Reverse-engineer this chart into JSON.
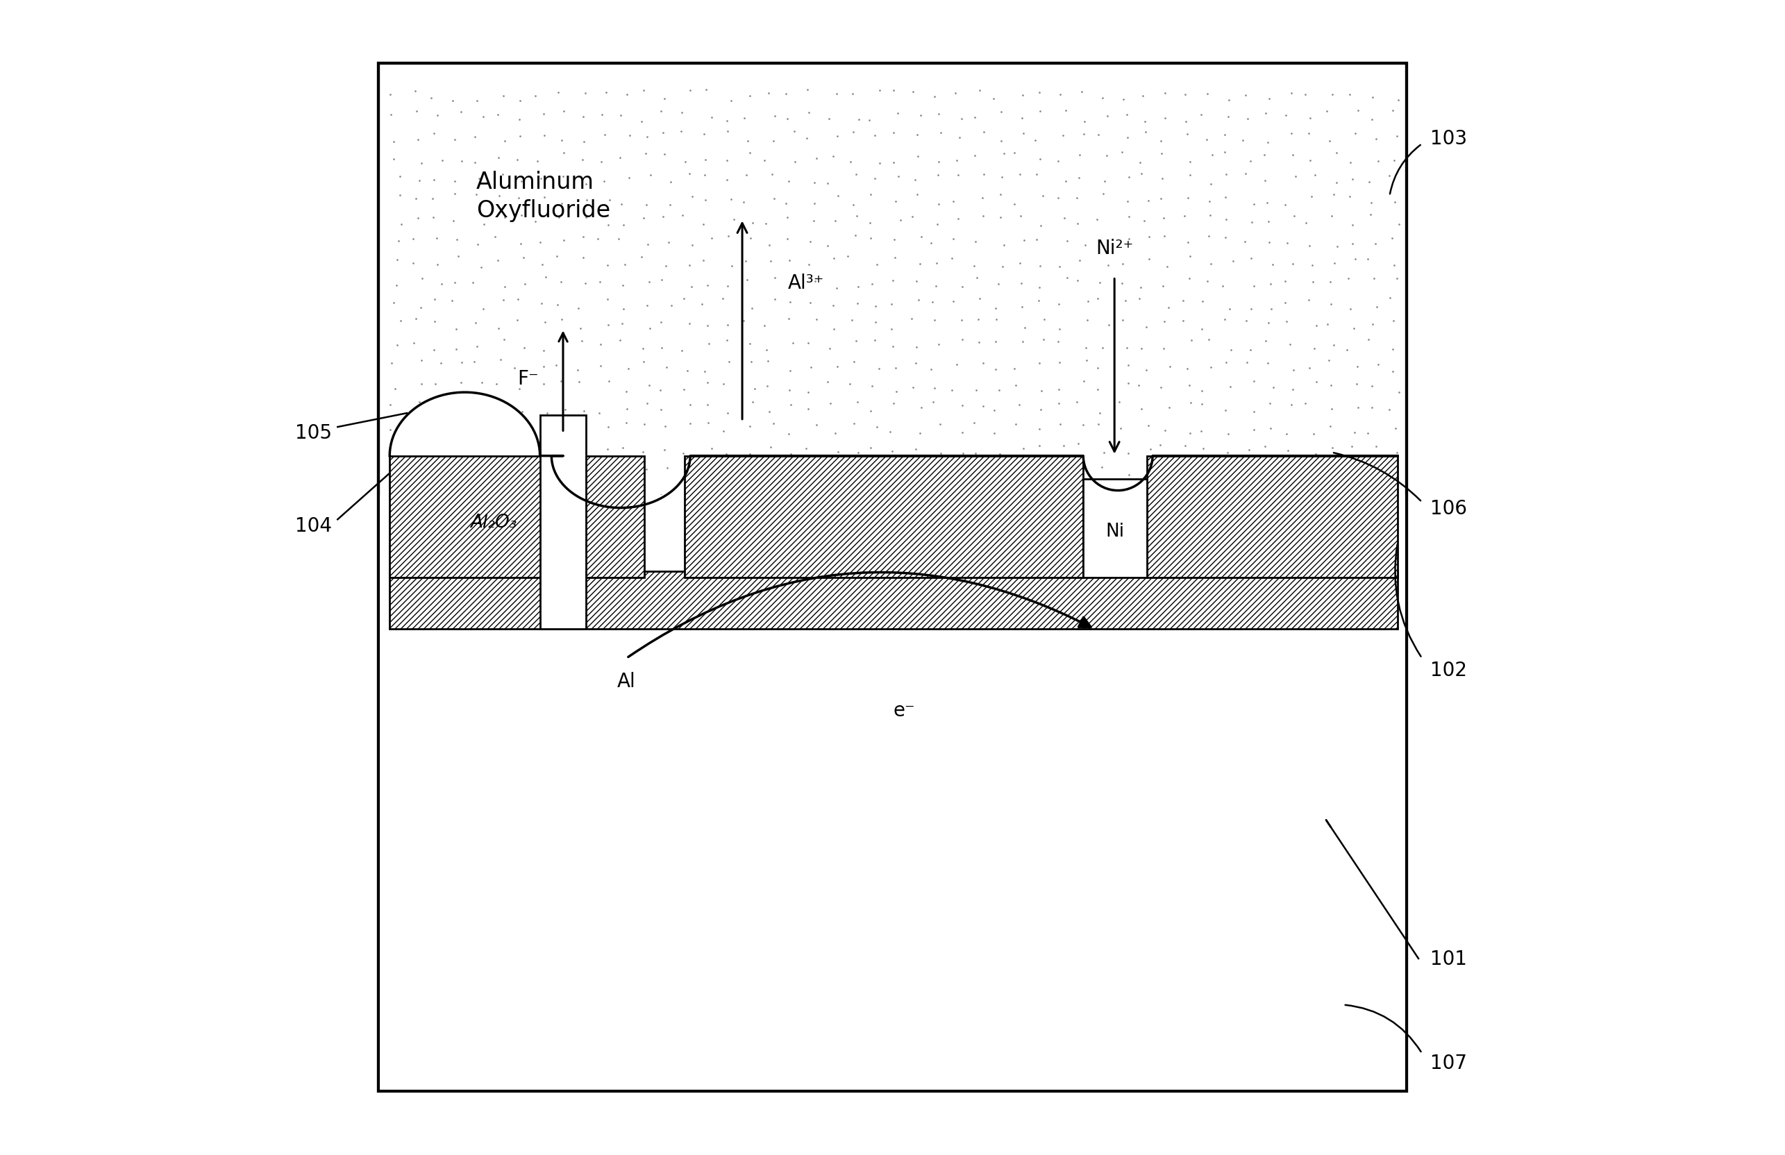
{
  "fig_width": 25.71,
  "fig_height": 16.65,
  "bg_color": "#ffffff",
  "labels": {
    "aluminum_oxyfluoride": "Aluminum\nOxyfluoride",
    "al2o3": "Al₂O₃",
    "ni": "Ni",
    "al": "Al",
    "f_minus": "F⁻",
    "al3plus": "Al³⁺",
    "ni2plus": "Ni²⁺",
    "e_minus": "e⁻"
  },
  "ref_nums": [
    "101",
    "102",
    "103",
    "104",
    "105",
    "106",
    "107"
  ]
}
